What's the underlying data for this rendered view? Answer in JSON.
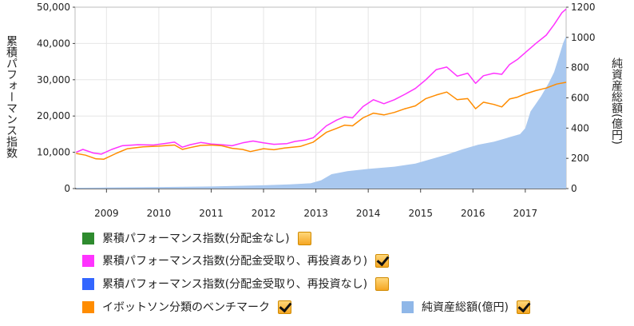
{
  "chart_data": {
    "type": "line",
    "left_axis": {
      "label": "累積パフォーマンス指数",
      "range": [
        0,
        50000
      ],
      "ticks": [
        "0",
        "10,000",
        "20,000",
        "30,000",
        "40,000",
        "50,000"
      ]
    },
    "right_axis": {
      "label": "純資産総額(億円)",
      "range": [
        0,
        1200
      ],
      "ticks": [
        "0",
        "200",
        "400",
        "600",
        "800",
        "1000",
        "1200"
      ]
    },
    "x_axis": {
      "range": [
        2008.4,
        2017.78
      ],
      "ticks": [
        "2009",
        "2010",
        "2011",
        "2012",
        "2013",
        "2014",
        "2015",
        "2016",
        "2017"
      ]
    },
    "grid": true,
    "series": [
      {
        "name": "累積パフォーマンス指数(分配金受取り、再投資あり)",
        "color": "#ff33ff",
        "axis": "left",
        "points": [
          [
            2008.42,
            10000
          ],
          [
            2008.55,
            10800
          ],
          [
            2008.75,
            9800
          ],
          [
            2008.9,
            9500
          ],
          [
            2009.1,
            10800
          ],
          [
            2009.3,
            11800
          ],
          [
            2009.6,
            12100
          ],
          [
            2009.9,
            12000
          ],
          [
            2010.1,
            12400
          ],
          [
            2010.3,
            12800
          ],
          [
            2010.45,
            11400
          ],
          [
            2010.6,
            12100
          ],
          [
            2010.8,
            12700
          ],
          [
            2011.0,
            12300
          ],
          [
            2011.2,
            12100
          ],
          [
            2011.4,
            11800
          ],
          [
            2011.6,
            12600
          ],
          [
            2011.8,
            13100
          ],
          [
            2012.0,
            12600
          ],
          [
            2012.2,
            12200
          ],
          [
            2012.45,
            12400
          ],
          [
            2012.6,
            13000
          ],
          [
            2012.8,
            13400
          ],
          [
            2012.95,
            14000
          ],
          [
            2013.2,
            17300
          ],
          [
            2013.4,
            18900
          ],
          [
            2013.55,
            19800
          ],
          [
            2013.7,
            19500
          ],
          [
            2013.9,
            22600
          ],
          [
            2014.1,
            24500
          ],
          [
            2014.3,
            23400
          ],
          [
            2014.5,
            24500
          ],
          [
            2014.7,
            26000
          ],
          [
            2014.9,
            27600
          ],
          [
            2015.1,
            30000
          ],
          [
            2015.3,
            32800
          ],
          [
            2015.5,
            33500
          ],
          [
            2015.7,
            31000
          ],
          [
            2015.9,
            31800
          ],
          [
            2016.05,
            29000
          ],
          [
            2016.2,
            31100
          ],
          [
            2016.4,
            31800
          ],
          [
            2016.55,
            31500
          ],
          [
            2016.7,
            34200
          ],
          [
            2016.85,
            35600
          ],
          [
            2017.0,
            37500
          ],
          [
            2017.2,
            40000
          ],
          [
            2017.4,
            42300
          ],
          [
            2017.55,
            45200
          ],
          [
            2017.7,
            48500
          ],
          [
            2017.78,
            49500
          ]
        ]
      },
      {
        "name": "イボットソン分類のベンチマーク",
        "color": "#ff8c00",
        "axis": "left",
        "points": [
          [
            2008.42,
            9700
          ],
          [
            2008.6,
            9200
          ],
          [
            2008.8,
            8200
          ],
          [
            2008.95,
            8100
          ],
          [
            2009.2,
            9800
          ],
          [
            2009.4,
            11000
          ],
          [
            2009.7,
            11500
          ],
          [
            2010.0,
            11700
          ],
          [
            2010.3,
            12000
          ],
          [
            2010.45,
            10800
          ],
          [
            2010.6,
            11300
          ],
          [
            2010.8,
            11900
          ],
          [
            2011.0,
            12000
          ],
          [
            2011.2,
            11800
          ],
          [
            2011.4,
            11100
          ],
          [
            2011.6,
            10800
          ],
          [
            2011.75,
            10200
          ],
          [
            2012.0,
            11000
          ],
          [
            2012.2,
            10700
          ],
          [
            2012.4,
            11200
          ],
          [
            2012.7,
            11600
          ],
          [
            2012.95,
            12800
          ],
          [
            2013.2,
            15500
          ],
          [
            2013.4,
            16600
          ],
          [
            2013.55,
            17500
          ],
          [
            2013.7,
            17300
          ],
          [
            2013.9,
            19500
          ],
          [
            2014.1,
            20800
          ],
          [
            2014.3,
            20300
          ],
          [
            2014.5,
            21000
          ],
          [
            2014.7,
            22000
          ],
          [
            2014.9,
            22800
          ],
          [
            2015.1,
            24800
          ],
          [
            2015.3,
            25800
          ],
          [
            2015.5,
            26600
          ],
          [
            2015.7,
            24500
          ],
          [
            2015.9,
            24800
          ],
          [
            2016.05,
            22000
          ],
          [
            2016.2,
            23800
          ],
          [
            2016.4,
            23200
          ],
          [
            2016.55,
            22500
          ],
          [
            2016.7,
            24700
          ],
          [
            2016.85,
            25200
          ],
          [
            2017.0,
            26100
          ],
          [
            2017.2,
            27000
          ],
          [
            2017.4,
            27700
          ],
          [
            2017.6,
            28800
          ],
          [
            2017.78,
            29300
          ]
        ]
      },
      {
        "name": "純資産総額(億円)",
        "color": "#a9c8ef",
        "type": "area",
        "axis": "right",
        "points": [
          [
            2008.42,
            5
          ],
          [
            2009.0,
            7
          ],
          [
            2010.0,
            10
          ],
          [
            2011.0,
            14
          ],
          [
            2012.0,
            22
          ],
          [
            2012.5,
            28
          ],
          [
            2012.9,
            35
          ],
          [
            2013.1,
            55
          ],
          [
            2013.3,
            95
          ],
          [
            2013.6,
            115
          ],
          [
            2014.0,
            130
          ],
          [
            2014.5,
            145
          ],
          [
            2014.9,
            165
          ],
          [
            2015.2,
            195
          ],
          [
            2015.5,
            225
          ],
          [
            2015.8,
            260
          ],
          [
            2016.1,
            290
          ],
          [
            2016.4,
            310
          ],
          [
            2016.7,
            340
          ],
          [
            2016.9,
            360
          ],
          [
            2017.0,
            400
          ],
          [
            2017.1,
            510
          ],
          [
            2017.2,
            560
          ],
          [
            2017.3,
            610
          ],
          [
            2017.45,
            700
          ],
          [
            2017.55,
            770
          ],
          [
            2017.65,
            880
          ],
          [
            2017.72,
            960
          ],
          [
            2017.78,
            1010
          ]
        ]
      }
    ],
    "legend": [
      {
        "label": "累積パフォーマンス指数(分配金なし)",
        "color": "#2e8b2e",
        "checked": false
      },
      {
        "label": "累積パフォーマンス指数(分配金受取り、再投資あり)",
        "color": "#ff33ff",
        "checked": true
      },
      {
        "label": "累積パフォーマンス指数(分配金受取り、再投資なし)",
        "color": "#3366ff",
        "checked": false
      },
      {
        "label": "イボットソン分類のベンチマーク",
        "color": "#ff8c00",
        "checked": true
      },
      {
        "label": "純資産総額(億円)",
        "color": "#8fb7e8",
        "checked": true
      }
    ]
  }
}
